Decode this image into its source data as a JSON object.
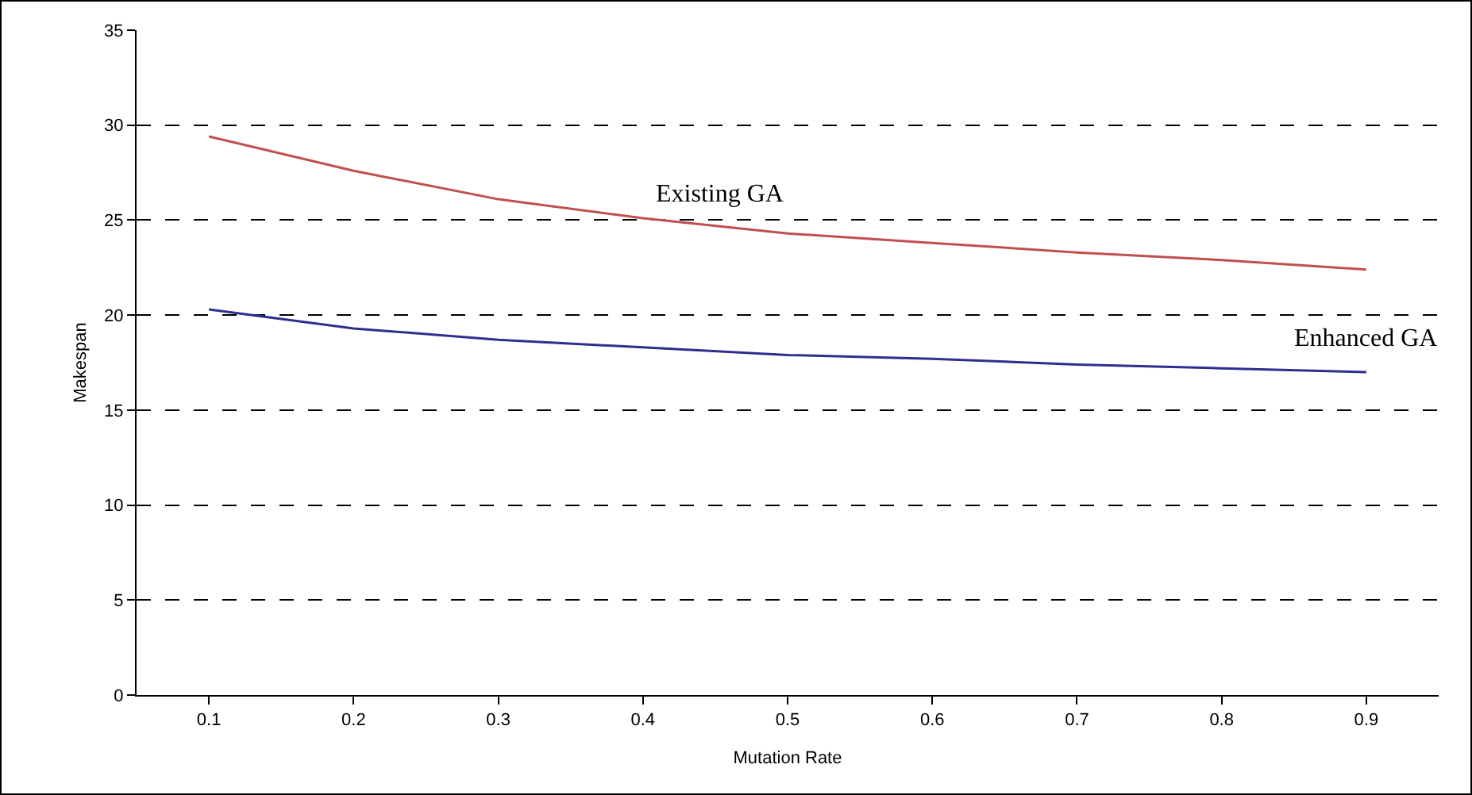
{
  "chart_data": {
    "type": "line",
    "xlabel": "Mutation Rate",
    "ylabel": "Makespan",
    "categories": [
      "0.1",
      "0.2",
      "0.3",
      "0.4",
      "0.5",
      "0.6",
      "0.7",
      "0.8",
      "0.9"
    ],
    "series": [
      {
        "name": "Existing GA",
        "color": "#c0504d",
        "values": [
          29.4,
          27.6,
          26.1,
          25.1,
          24.3,
          23.8,
          23.3,
          22.9,
          22.4
        ]
      },
      {
        "name": "Enhanced GA",
        "color": "#2e2e8f",
        "values": [
          20.3,
          19.3,
          18.7,
          18.3,
          17.9,
          17.7,
          17.4,
          17.2,
          17.0
        ]
      }
    ],
    "ylim": [
      0,
      35
    ],
    "yticks": [
      0,
      5,
      10,
      15,
      20,
      25,
      30,
      35
    ],
    "grid": "y",
    "legend": false,
    "marker": "none",
    "line_style": "solid"
  }
}
